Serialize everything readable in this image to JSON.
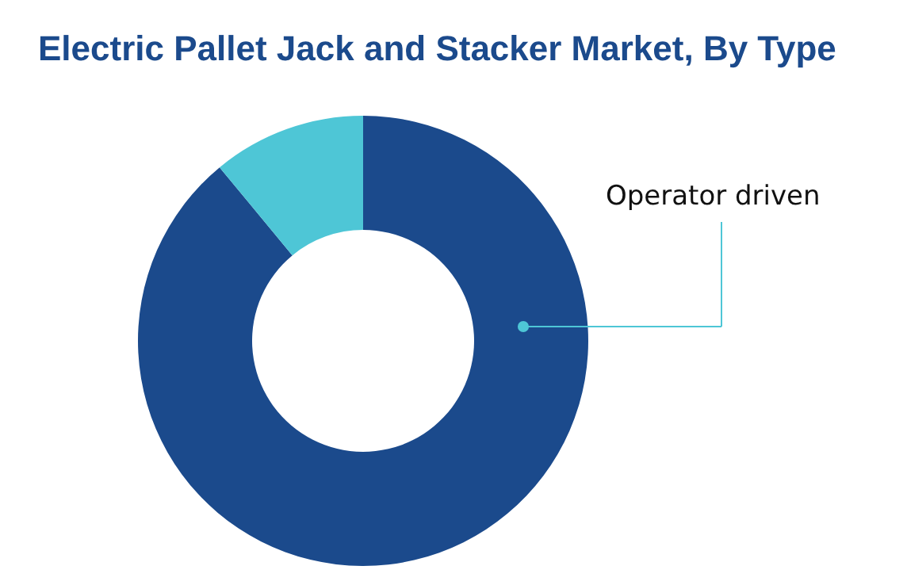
{
  "chart_data": {
    "type": "donut",
    "title": "Electric Pallet Jack and Stacker Market, By Type",
    "categories": [
      "Operator driven",
      null
    ],
    "values": [
      89,
      11
    ],
    "colors": [
      "#1b4a8c",
      "#4ec6d6"
    ]
  }
}
